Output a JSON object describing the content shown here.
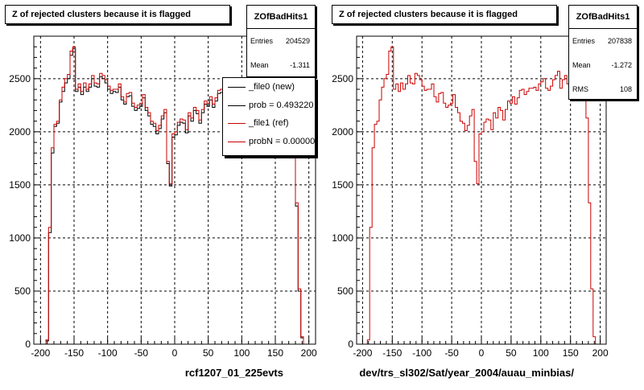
{
  "chart_data": [
    {
      "type": "line",
      "title": "Z of rejected clusters  because it is flagged",
      "xlabel": "rcf1207_01_225evts",
      "ylabel": "",
      "xlim": [
        -210,
        210
      ],
      "ylim": [
        0,
        2900
      ],
      "x_ticks": [
        -200,
        -150,
        -100,
        -50,
        0,
        50,
        100,
        150,
        200
      ],
      "x_tick_labels": [
        "-200",
        "-150",
        "-100",
        "-50",
        "0",
        "50",
        "100",
        "150",
        "200"
      ],
      "y_ticks": [
        0,
        500,
        1000,
        1500,
        2000,
        2500
      ],
      "y_tick_labels": [
        "0",
        "500",
        "1000",
        "1500",
        "2000",
        "2500"
      ],
      "grid": true,
      "stats": {
        "name": "ZOfBadHits1",
        "entries_label": "Entries",
        "entries": "204529",
        "mean_label": "Mean",
        "mean": "-1.311"
      },
      "legend": {
        "placement": "top-right",
        "entries": [
          {
            "text": "_file0 (new)",
            "color": "#000000"
          },
          {
            "text": "prob = 0.493220",
            "color": "#000000"
          },
          {
            "text": "_file1 (ref)",
            "color": "#cc0000"
          },
          {
            "text": "probN = 0.000000",
            "color": "#cc0000"
          }
        ]
      },
      "series": [
        {
          "color": "#000000",
          "x": [
            -190,
            -186,
            -182,
            -178,
            -174,
            -170,
            -166,
            -162,
            -158,
            -154,
            -150,
            -146,
            -142,
            -138,
            -134,
            -130,
            -126,
            -122,
            -118,
            -114,
            -110,
            -106,
            -102,
            -98,
            -94,
            -90,
            -86,
            -82,
            -78,
            -74,
            -70,
            -66,
            -62,
            -58,
            -54,
            -50,
            -46,
            -42,
            -38,
            -34,
            -30,
            -26,
            -22,
            -18,
            -14,
            -10,
            -6,
            -2,
            2,
            6,
            10,
            14,
            18,
            22,
            26,
            30,
            34,
            38,
            42,
            46,
            50,
            54,
            58,
            62,
            66,
            70,
            74,
            78,
            82,
            86,
            90,
            94,
            98,
            102,
            106,
            110,
            114,
            118,
            122,
            126,
            130,
            134,
            138,
            142,
            146,
            150,
            154,
            158,
            162,
            166,
            170,
            174,
            178,
            182,
            186,
            190,
            194
          ],
          "y": [
            30,
            1050,
            1800,
            2050,
            2080,
            2280,
            2380,
            2460,
            2500,
            2720,
            2780,
            2380,
            2420,
            2350,
            2420,
            2380,
            2420,
            2500,
            2430,
            2420,
            2520,
            2500,
            2460,
            2400,
            2360,
            2380,
            2370,
            2420,
            2300,
            2260,
            2330,
            2340,
            2240,
            2200,
            2220,
            2240,
            2320,
            2200,
            2150,
            2070,
            2050,
            1980,
            2030,
            2120,
            2180,
            1700,
            1490,
            1950,
            1970,
            2060,
            2090,
            2080,
            1990,
            2150,
            2100,
            2200,
            2170,
            2080,
            2180,
            2260,
            2240,
            2300,
            2230,
            2290,
            2360,
            2370,
            2320,
            2350,
            2380,
            2380,
            2390,
            2360,
            2420,
            2440,
            2470,
            2380,
            2360,
            2400,
            2460,
            2500,
            2540,
            2380,
            2460,
            2500,
            2420,
            2470,
            2480,
            2430,
            2390,
            2420,
            2440,
            2350,
            2100,
            1300,
            500,
            60,
            0
          ]
        },
        {
          "color": "#cc0000",
          "x": [
            -190,
            -186,
            -182,
            -178,
            -174,
            -170,
            -166,
            -162,
            -158,
            -154,
            -150,
            -146,
            -142,
            -138,
            -134,
            -130,
            -126,
            -122,
            -118,
            -114,
            -110,
            -106,
            -102,
            -98,
            -94,
            -90,
            -86,
            -82,
            -78,
            -74,
            -70,
            -66,
            -62,
            -58,
            -54,
            -50,
            -46,
            -42,
            -38,
            -34,
            -30,
            -26,
            -22,
            -18,
            -14,
            -10,
            -6,
            -2,
            2,
            6,
            10,
            14,
            18,
            22,
            26,
            30,
            34,
            38,
            42,
            46,
            50,
            54,
            58,
            62,
            66,
            70,
            74,
            78,
            82,
            86,
            90,
            94,
            98,
            102,
            106,
            110,
            114,
            118,
            122,
            126,
            130,
            134,
            138,
            142,
            146,
            150,
            154,
            158,
            162,
            166,
            170,
            174,
            178,
            182,
            186,
            190,
            194
          ],
          "y": [
            40,
            1100,
            1850,
            2070,
            2100,
            2300,
            2420,
            2500,
            2540,
            2760,
            2800,
            2400,
            2450,
            2380,
            2460,
            2400,
            2450,
            2530,
            2460,
            2450,
            2550,
            2530,
            2490,
            2430,
            2390,
            2400,
            2400,
            2450,
            2330,
            2280,
            2360,
            2370,
            2270,
            2230,
            2250,
            2270,
            2350,
            2230,
            2180,
            2100,
            2080,
            2010,
            2060,
            2150,
            2210,
            1720,
            1510,
            1980,
            2000,
            2090,
            2120,
            2110,
            2020,
            2180,
            2130,
            2230,
            2200,
            2110,
            2210,
            2290,
            2270,
            2330,
            2260,
            2320,
            2390,
            2400,
            2350,
            2380,
            2410,
            2410,
            2420,
            2390,
            2450,
            2470,
            2500,
            2410,
            2390,
            2430,
            2490,
            2530,
            2570,
            2410,
            2490,
            2530,
            2450,
            2500,
            2510,
            2460,
            2420,
            2450,
            2470,
            2380,
            2130,
            1330,
            520,
            70,
            0
          ]
        }
      ]
    },
    {
      "type": "line",
      "title": "Z of rejected clusters  because it is flagged",
      "xlabel": "dev/trs_sl302/Sat/year_2004/auau_minbias/",
      "ylabel": "",
      "xlim": [
        -210,
        210
      ],
      "ylim": [
        0,
        2900
      ],
      "x_ticks": [
        -200,
        -150,
        -100,
        -50,
        0,
        50,
        100,
        150,
        200
      ],
      "x_tick_labels": [
        "-200",
        "-150",
        "-100",
        "-50",
        "0",
        "50",
        "100",
        "150",
        "200"
      ],
      "y_ticks": [
        0,
        500,
        1000,
        1500,
        2000,
        2500
      ],
      "y_tick_labels": [
        "0",
        "500",
        "1000",
        "1500",
        "2000",
        "2500"
      ],
      "grid": true,
      "stats": {
        "name": "ZOfBadHits1",
        "entries_label": "Entries",
        "entries": "207838",
        "mean_label": "Mean",
        "mean": "-1.272",
        "rms_label": "RMS",
        "rms": "108"
      },
      "series": [
        {
          "color": "#cc0000",
          "x": [
            -190,
            -186,
            -182,
            -178,
            -174,
            -170,
            -166,
            -162,
            -158,
            -154,
            -150,
            -146,
            -142,
            -138,
            -134,
            -130,
            -126,
            -122,
            -118,
            -114,
            -110,
            -106,
            -102,
            -98,
            -94,
            -90,
            -86,
            -82,
            -78,
            -74,
            -70,
            -66,
            -62,
            -58,
            -54,
            -50,
            -46,
            -42,
            -38,
            -34,
            -30,
            -26,
            -22,
            -18,
            -14,
            -10,
            -6,
            -2,
            2,
            6,
            10,
            14,
            18,
            22,
            26,
            30,
            34,
            38,
            42,
            46,
            50,
            54,
            58,
            62,
            66,
            70,
            74,
            78,
            82,
            86,
            90,
            94,
            98,
            102,
            106,
            110,
            114,
            118,
            122,
            126,
            130,
            134,
            138,
            142,
            146,
            150,
            154,
            158,
            162,
            166,
            170,
            174,
            178,
            182,
            186,
            190,
            194
          ],
          "y": [
            40,
            1100,
            1850,
            2070,
            2100,
            2300,
            2420,
            2500,
            2540,
            2760,
            2800,
            2400,
            2450,
            2380,
            2460,
            2400,
            2450,
            2530,
            2460,
            2450,
            2550,
            2530,
            2490,
            2430,
            2390,
            2400,
            2400,
            2450,
            2330,
            2280,
            2360,
            2370,
            2270,
            2230,
            2250,
            2270,
            2350,
            2230,
            2180,
            2100,
            2080,
            2010,
            2060,
            2150,
            2210,
            1720,
            1510,
            1980,
            2000,
            2090,
            2120,
            2110,
            2020,
            2180,
            2130,
            2230,
            2200,
            2110,
            2210,
            2290,
            2270,
            2330,
            2260,
            2320,
            2390,
            2400,
            2350,
            2380,
            2410,
            2410,
            2420,
            2390,
            2450,
            2470,
            2500,
            2410,
            2390,
            2430,
            2490,
            2530,
            2570,
            2410,
            2490,
            2530,
            2450,
            2500,
            2510,
            2460,
            2420,
            2450,
            2470,
            2380,
            2130,
            1330,
            520,
            70,
            0
          ]
        }
      ]
    }
  ]
}
